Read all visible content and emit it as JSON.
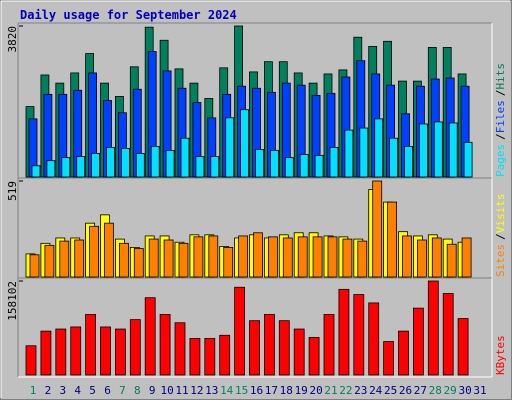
{
  "chart_data": {
    "type": "bar",
    "title": "Daily usage for September 2024",
    "categories": [
      "1",
      "2",
      "3",
      "4",
      "5",
      "6",
      "7",
      "8",
      "9",
      "10",
      "11",
      "12",
      "13",
      "14",
      "15",
      "16",
      "17",
      "18",
      "19",
      "20",
      "21",
      "22",
      "23",
      "24",
      "25",
      "26",
      "27",
      "28",
      "29",
      "30",
      "31"
    ],
    "category_colors": [
      "#008060",
      "#000080",
      "#000080",
      "#000080",
      "#000080",
      "#000080",
      "#008060",
      "#008060",
      "#000080",
      "#000080",
      "#000080",
      "#000080",
      "#000080",
      "#008060",
      "#008060",
      "#000080",
      "#000080",
      "#000080",
      "#000080",
      "#000080",
      "#008060",
      "#008060",
      "#000080",
      "#000080",
      "#000080",
      "#000080",
      "#000080",
      "#008060",
      "#008060",
      "#000080",
      "#000080"
    ],
    "legend_separator": "/",
    "panels": [
      {
        "type": "bar",
        "ylim": [
          0,
          3820
        ],
        "yticks": [
          3820
        ],
        "series": [
          {
            "name": "Hits",
            "color": "#00805c",
            "values": [
              1781,
              2581,
              2375,
              2633,
              3123,
              2375,
              2039,
              2788,
              3790,
              3459,
              2736,
              2375,
              1987,
              2762,
              3820,
              2659,
              2917,
              2917,
              2633,
              2375,
              2607,
              2710,
              3536,
              3304,
              3433,
              2426,
              2426,
              3278,
              3278,
              2607,
              null
            ]
          },
          {
            "name": "Files",
            "color": "#0040ff",
            "values": [
              1471,
              2091,
              2091,
              2194,
              2633,
              1936,
              1626,
              2220,
              3175,
              2684,
              2245,
              1884,
              1497,
              2091,
              2297,
              2245,
              2142,
              2375,
              2323,
              2065,
              2116,
              2529,
              2942,
              2607,
              2323,
              1600,
              2297,
              2478,
              2504,
              2297,
              null
            ]
          },
          {
            "name": "Pages",
            "color": "#00e0ff",
            "values": [
              284,
              413,
              490,
              516,
              594,
              748,
              723,
              594,
              774,
              671,
              981,
              516,
              516,
              1497,
              1703,
              697,
              671,
              490,
              568,
              542,
              748,
              1187,
              1239,
              1471,
              981,
              774,
              1342,
              1394,
              1368,
              877,
              null
            ]
          }
        ]
      },
      {
        "type": "bar",
        "ylim": [
          0,
          519
        ],
        "yticks": [
          519
        ],
        "series": [
          {
            "name": "Visits",
            "color": "#ffff00",
            "values": [
              125,
              182,
              211,
              211,
              291,
              336,
              205,
              160,
              222,
              222,
              188,
              228,
              228,
              165,
              211,
              228,
              211,
              228,
              239,
              239,
              222,
              217,
              205,
              473,
              405,
              245,
              222,
              228,
              205,
              188,
              null
            ]
          },
          {
            "name": "Sites",
            "color": "#ff8000",
            "values": [
              120,
              171,
              194,
              200,
              274,
              291,
              182,
              154,
              205,
              200,
              182,
              217,
              222,
              160,
              222,
              239,
              217,
              211,
              217,
              217,
              217,
              205,
              194,
              519,
              405,
              222,
              200,
              211,
              177,
              211,
              null
            ]
          }
        ]
      },
      {
        "type": "bar",
        "ylim": [
          0,
          158102
        ],
        "yticks": [
          158102
        ],
        "series": [
          {
            "name": "KBytes",
            "color": "#ff0000",
            "values": [
              49196,
              73794,
              77308,
              80822,
              101906,
              80822,
              77308,
              93121,
              130018,
              101906,
              87850,
              61495,
              61495,
              66766,
              147588,
              91364,
              101906,
              91364,
              77308,
              63252,
              101906,
              144074,
              135289,
              121233,
              56224,
              73794,
              112448,
              158102,
              137046,
              94878,
              null
            ]
          }
        ]
      }
    ]
  }
}
